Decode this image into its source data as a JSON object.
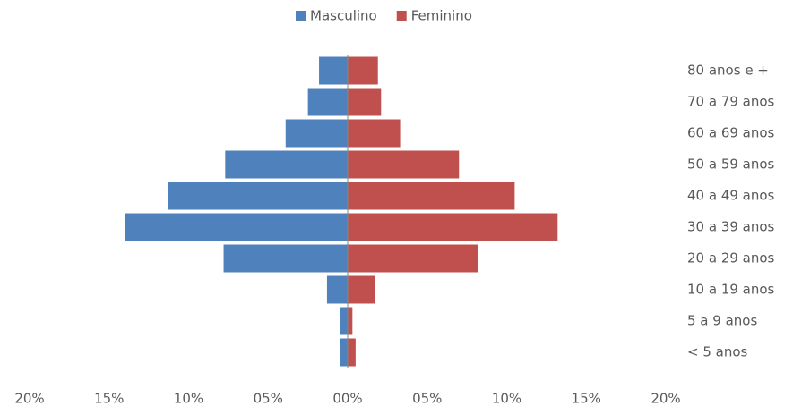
{
  "chart_data": {
    "type": "pyramid",
    "categories": [
      "80 anos e +",
      "70 a 79 anos",
      "60 a 69 anos",
      "50 a 59 anos",
      "40 a 49 anos",
      "30 a 39 anos",
      "20 a 29 anos",
      "10 a 19 anos",
      "5 a 9 anos",
      "< 5 anos"
    ],
    "series": [
      {
        "name": "Masculino",
        "color": "#4f81bd",
        "values": [
          -1.8,
          -2.5,
          -3.9,
          -7.7,
          -11.3,
          -14.0,
          -7.8,
          -1.3,
          -0.5,
          -0.5
        ]
      },
      {
        "name": "Feminino",
        "color": "#c0504d",
        "values": [
          1.9,
          2.1,
          3.3,
          7.0,
          10.5,
          13.2,
          8.2,
          1.7,
          0.3,
          0.5
        ]
      }
    ],
    "xlim": [
      -20,
      20
    ],
    "xticks": [
      {
        "value": -20,
        "label": "20%"
      },
      {
        "value": -15,
        "label": "15%"
      },
      {
        "value": -10,
        "label": "10%"
      },
      {
        "value": -5,
        "label": "05%"
      },
      {
        "value": 0,
        "label": "00%"
      },
      {
        "value": 5,
        "label": "05%"
      },
      {
        "value": 10,
        "label": "10%"
      },
      {
        "value": 15,
        "label": "15%"
      },
      {
        "value": 20,
        "label": "20%"
      }
    ],
    "legend": "top"
  }
}
